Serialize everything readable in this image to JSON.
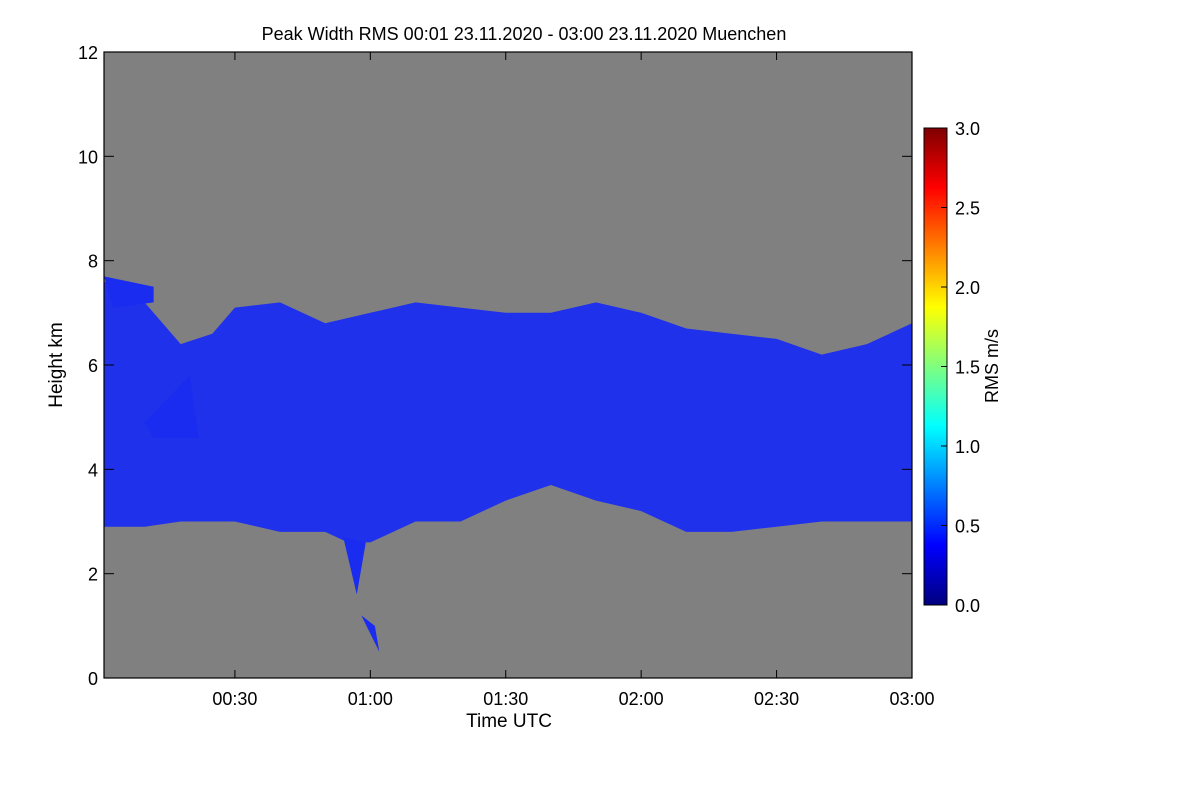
{
  "chart_data": {
    "type": "heatmap",
    "title": "Peak Width RMS   00:01 23.11.2020 - 03:00 23.11.2020 Muenchen",
    "xlabel": "Time UTC",
    "ylabel": "Height km",
    "xlim_minutes_utc": [
      1,
      180
    ],
    "ylim": [
      0,
      12
    ],
    "x_ticks": [
      {
        "minute": 30,
        "label": "00:30"
      },
      {
        "minute": 60,
        "label": "01:00"
      },
      {
        "minute": 90,
        "label": "01:30"
      },
      {
        "minute": 120,
        "label": "02:00"
      },
      {
        "minute": 150,
        "label": "02:30"
      },
      {
        "minute": 180,
        "label": "03:00"
      }
    ],
    "y_ticks": [
      0,
      2,
      4,
      6,
      8,
      10,
      12
    ],
    "colorbar": {
      "label": "RMS m/s",
      "range": [
        0.0,
        3.0
      ],
      "ticks": [
        "0.0",
        "0.5",
        "1.0",
        "1.5",
        "2.0",
        "2.5",
        "3.0"
      ],
      "colormap": [
        "#00007f",
        "#0000ff",
        "#007fff",
        "#00ffff",
        "#7fff7f",
        "#ffff00",
        "#ff7f00",
        "#ff0000",
        "#7f0000"
      ]
    },
    "background_color": "#808080",
    "echo_color": "#1a2cf0",
    "cloud_layer": {
      "minute": [
        1,
        10,
        18,
        25,
        30,
        40,
        50,
        55,
        60,
        70,
        80,
        90,
        100,
        110,
        120,
        130,
        140,
        150,
        160,
        170,
        180
      ],
      "top_km": [
        7.6,
        7.2,
        6.4,
        6.6,
        7.1,
        7.2,
        6.8,
        6.9,
        7.0,
        7.2,
        7.1,
        7.0,
        7.0,
        7.2,
        7.0,
        6.7,
        6.6,
        6.5,
        6.2,
        6.4,
        6.8
      ],
      "base_km": [
        2.9,
        2.9,
        3.0,
        3.0,
        3.0,
        2.8,
        2.8,
        2.6,
        2.6,
        3.0,
        3.0,
        3.4,
        3.7,
        3.4,
        3.2,
        2.8,
        2.8,
        2.9,
        3.0,
        3.0,
        3.0
      ]
    }
  }
}
